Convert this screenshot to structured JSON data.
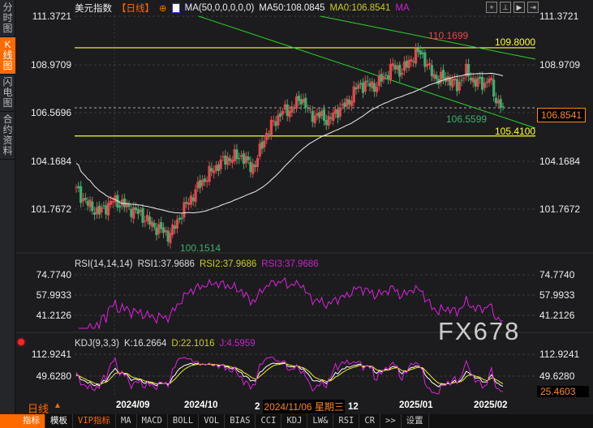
{
  "sidebar": {
    "tabs": [
      {
        "label": "分时图"
      },
      {
        "label": "K线图",
        "active": true
      },
      {
        "label": "闪电图"
      },
      {
        "label": "合约资料"
      }
    ]
  },
  "header": {
    "symbol": "美元指数",
    "period": "【日线】",
    "ma_params": "MA(50,0,0,0,0,0)",
    "ma50": "MA50:108.0845",
    "ma0": "MA0:106.8541",
    "ma_extra": "MA"
  },
  "toolbar_icons": [
    "crosshair-icon",
    "fit-icon",
    "play-icon",
    "jump-end-icon"
  ],
  "main": {
    "axis_labels": [
      "111.3721",
      "108.9709",
      "106.5696",
      "104.1684",
      "101.7672"
    ],
    "annotations": {
      "high": "110.1699",
      "low": "100.1514",
      "recent_low": "106.5599",
      "resistance": "109.8000",
      "support": "105.4100",
      "current": "106.8541"
    },
    "keypoints": [
      [
        0,
        102.7
      ],
      [
        6,
        101.9
      ],
      [
        10,
        101.6
      ],
      [
        16,
        102.2
      ],
      [
        22,
        101.9
      ],
      [
        28,
        101.5
      ],
      [
        34,
        100.9
      ],
      [
        40,
        100.5
      ],
      [
        42,
        100.7
      ],
      [
        48,
        102.0
      ],
      [
        54,
        103.0
      ],
      [
        60,
        103.8
      ],
      [
        66,
        104.3
      ],
      [
        72,
        104.4
      ],
      [
        76,
        103.9
      ],
      [
        78,
        104.0
      ],
      [
        82,
        105.3
      ],
      [
        86,
        106.1
      ],
      [
        90,
        106.6
      ],
      [
        94,
        106.8
      ],
      [
        98,
        107.3
      ],
      [
        102,
        106.5
      ],
      [
        106,
        106.4
      ],
      [
        110,
        106.2
      ],
      [
        114,
        106.7
      ],
      [
        118,
        107.0
      ],
      [
        122,
        107.8
      ],
      [
        126,
        108.0
      ],
      [
        130,
        107.9
      ],
      [
        134,
        108.3
      ],
      [
        138,
        108.9
      ],
      [
        142,
        108.6
      ],
      [
        146,
        109.3
      ],
      [
        150,
        109.6
      ],
      [
        154,
        108.7
      ],
      [
        158,
        108.2
      ],
      [
        162,
        108.3
      ],
      [
        166,
        107.9
      ],
      [
        170,
        108.6
      ],
      [
        174,
        108.1
      ],
      [
        178,
        108.0
      ],
      [
        180,
        108.3
      ],
      [
        183,
        107.2
      ],
      [
        186,
        106.85
      ]
    ],
    "colors": {
      "up": "#e8464e",
      "down": "#3fae6e",
      "trend": "#2ed12e",
      "level": "#ffff33",
      "ma": "#eeeeee"
    }
  },
  "time_axis": {
    "ticks": [
      "2024/09",
      "2024/10",
      "2",
      "12",
      "2025/01",
      "2025/02"
    ],
    "cursor_label": "2024/11/06 星期三",
    "period_label": "日线",
    "period_arrow": "▲"
  },
  "rsi": {
    "title": "RSI(14,14,14)",
    "rsi1": "RSI1:37.9686",
    "rsi2": "RSI2:37.9686",
    "rsi3": "RSI3:37.9686",
    "axis": [
      "74.7740",
      "57.9933",
      "41.2126"
    ]
  },
  "kdj": {
    "title": "KDJ(9,3,3)",
    "k": "K:16.2664",
    "d": "D:22.1016",
    "j": "J:4.5959",
    "axis": [
      "112.9241",
      "49.6280"
    ],
    "current": "25.4603"
  },
  "watermark": "FX678",
  "bottom_tabs": [
    "指标",
    "模板",
    "VIP指标",
    "MA",
    "MACD",
    "BOLL",
    "VOL",
    "BIAS",
    "CCI",
    "KDJ",
    "LW&",
    "RSI",
    "CR",
    ">>",
    "设置"
  ]
}
